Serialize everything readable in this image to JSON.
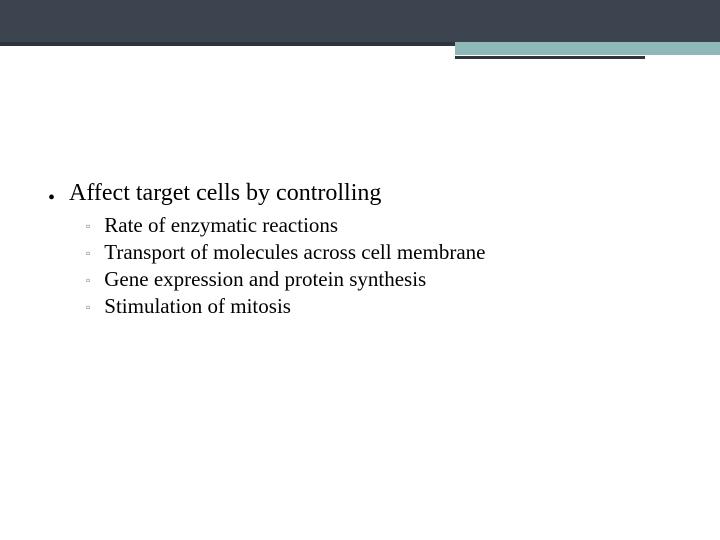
{
  "colors": {
    "header_bg": "#3c4450",
    "accent_dark": "#2e353f",
    "accent_teal": "#8fb8b8",
    "body_bg": "#ffffff",
    "main_bullet": "#000000",
    "sub_bullet": "#8a5a8a",
    "text": "#000000"
  },
  "typography": {
    "font_family": "Georgia, serif",
    "main_fontsize_pt": 18,
    "sub_fontsize_pt": 16
  },
  "content": {
    "main_items": [
      {
        "text": "Affect target cells by controlling",
        "sub_items": [
          "Rate of enzymatic reactions",
          "Transport of molecules across cell membrane",
          "Gene expression and protein synthesis",
          "Stimulation of mitosis"
        ]
      }
    ]
  },
  "bullets": {
    "main": "•",
    "sub": "▫"
  }
}
